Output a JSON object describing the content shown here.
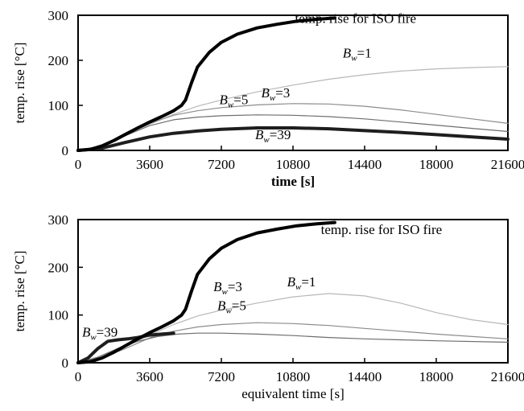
{
  "chart_data": [
    {
      "type": "line",
      "title": "",
      "xlabel": "time [s]",
      "ylabel": "temp. rise [°C]",
      "xlim": [
        0,
        21600
      ],
      "ylim": [
        0,
        300
      ],
      "xticks": [
        0,
        3600,
        7200,
        10800,
        14400,
        18000,
        21600
      ],
      "yticks": [
        0,
        100,
        200,
        300
      ],
      "grid": false,
      "series": [
        {
          "name": "temp. rise for ISO fire",
          "x": [
            0,
            600,
            1200,
            1800,
            2400,
            3000,
            3600,
            4200,
            4800,
            5200,
            5400,
            5700,
            6000,
            6600,
            7200,
            8000,
            9000,
            10000,
            11000,
            12000,
            12900
          ],
          "y": [
            0,
            2,
            10,
            22,
            36,
            50,
            63,
            75,
            88,
            100,
            112,
            150,
            185,
            218,
            240,
            258,
            272,
            280,
            287,
            291,
            294
          ]
        },
        {
          "name": "B_w=1",
          "x": [
            0,
            1200,
            2400,
            3600,
            4800,
            6000,
            7200,
            9000,
            10800,
            12600,
            14400,
            16200,
            18000,
            19800,
            21600
          ],
          "y": [
            0,
            10,
            34,
            58,
            80,
            98,
            112,
            130,
            145,
            158,
            168,
            176,
            181,
            184,
            186
          ]
        },
        {
          "name": "B_w=3",
          "x": [
            0,
            1200,
            2400,
            3600,
            4800,
            6000,
            7200,
            9000,
            10800,
            12600,
            14400,
            16200,
            18000,
            19800,
            21600
          ],
          "y": [
            0,
            10,
            34,
            60,
            78,
            88,
            95,
            101,
            104,
            103,
            98,
            90,
            80,
            70,
            60
          ]
        },
        {
          "name": "B_w=5",
          "x": [
            0,
            1200,
            2400,
            3600,
            4800,
            6000,
            7200,
            9000,
            10800,
            12600,
            14400,
            16200,
            18000,
            19800,
            21600
          ],
          "y": [
            0,
            10,
            33,
            55,
            68,
            74,
            77,
            79,
            78,
            75,
            70,
            63,
            56,
            49,
            42
          ]
        },
        {
          "name": "B_w=39",
          "x": [
            0,
            1200,
            2400,
            3600,
            4800,
            6000,
            7200,
            9000,
            10800,
            12600,
            14400,
            16200,
            18000,
            19800,
            21600
          ],
          "y": [
            0,
            5,
            18,
            30,
            38,
            43,
            47,
            50,
            50,
            48,
            44,
            40,
            35,
            30,
            25
          ]
        }
      ],
      "annotations": [
        {
          "text": "temp. rise for ISO fire",
          "x": 10900,
          "y": 283
        },
        {
          "base": "B",
          "sub": "w",
          "rest": "=1",
          "x": 13300,
          "y": 206
        },
        {
          "base": "B",
          "sub": "w",
          "rest": "=5",
          "x": 7100,
          "y": 103
        },
        {
          "base": "B",
          "sub": "w",
          "rest": "=3",
          "x": 9200,
          "y": 118
        },
        {
          "base": "B",
          "sub": "w",
          "rest": "=39",
          "x": 8900,
          "y": 25
        }
      ]
    },
    {
      "type": "line",
      "title": "",
      "xlabel": "equivalent time [s]",
      "ylabel": "temp. rise [°C]",
      "xlim": [
        0,
        21600
      ],
      "ylim": [
        0,
        300
      ],
      "xticks": [
        0,
        3600,
        7200,
        10800,
        14400,
        18000,
        21600
      ],
      "yticks": [
        0,
        100,
        200,
        300
      ],
      "grid": false,
      "series": [
        {
          "name": "temp. rise for ISO fire",
          "x": [
            0,
            600,
            1200,
            1800,
            2400,
            3000,
            3600,
            4200,
            4800,
            5200,
            5400,
            5700,
            6000,
            6600,
            7200,
            8000,
            9000,
            10000,
            11000,
            12000,
            12900
          ],
          "y": [
            0,
            2,
            10,
            22,
            36,
            50,
            63,
            75,
            88,
            100,
            112,
            150,
            185,
            218,
            240,
            258,
            272,
            280,
            287,
            291,
            294
          ]
        },
        {
          "name": "B_w=1",
          "x": [
            0,
            1200,
            2400,
            3600,
            4800,
            6000,
            7200,
            9000,
            10800,
            12600,
            14400,
            16200,
            18000,
            19800,
            21600
          ],
          "y": [
            0,
            10,
            34,
            58,
            80,
            98,
            110,
            125,
            138,
            145,
            140,
            125,
            105,
            90,
            80
          ]
        },
        {
          "name": "B_w=3",
          "x": [
            0,
            1200,
            2400,
            3600,
            4800,
            6000,
            7200,
            9000,
            10800,
            12600,
            14400,
            16200,
            18000,
            19800,
            21600
          ],
          "y": [
            0,
            10,
            30,
            52,
            66,
            75,
            80,
            84,
            82,
            78,
            72,
            66,
            60,
            55,
            50
          ]
        },
        {
          "name": "B_w=5",
          "x": [
            0,
            1000,
            2000,
            3000,
            4000,
            5000,
            6000,
            7200,
            9000,
            10800,
            12600,
            14400,
            16200,
            18000,
            21600
          ],
          "y": [
            0,
            12,
            30,
            45,
            55,
            60,
            62,
            62,
            60,
            57,
            53,
            50,
            48,
            46,
            43
          ]
        },
        {
          "name": "B_w=39",
          "x": [
            0,
            500,
            1000,
            1500,
            2000,
            2500,
            3000,
            3600,
            4200,
            4800
          ],
          "y": [
            0,
            10,
            30,
            45,
            48,
            50,
            53,
            58,
            60,
            62
          ]
        }
      ],
      "annotations": [
        {
          "text": "temp. rise for ISO fire",
          "x": 12200,
          "y": 270
        },
        {
          "base": "B",
          "sub": "w",
          "rest": "=3",
          "x": 6800,
          "y": 150
        },
        {
          "base": "B",
          "sub": "w",
          "rest": "=1",
          "x": 10500,
          "y": 160
        },
        {
          "base": "B",
          "sub": "w",
          "rest": "=5",
          "x": 7000,
          "y": 110
        },
        {
          "base": "B",
          "sub": "w",
          "rest": "=39",
          "x": 200,
          "y": 55
        }
      ]
    }
  ],
  "styles": {
    "iso": {
      "color": "#000000"
    },
    "B_w=1": {
      "color": "#b8b8b8"
    },
    "B_w=3": {
      "color": "#8c8c8c"
    },
    "B_w=5": {
      "color": "#6e6e6e"
    },
    "B_w=39": {
      "color": "#1e1e1e"
    },
    "frame": "#000000"
  }
}
